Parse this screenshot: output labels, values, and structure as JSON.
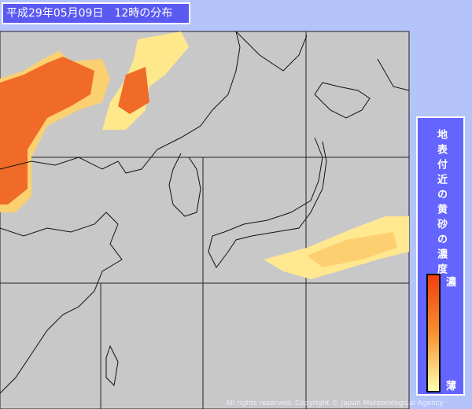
{
  "header": {
    "title": "平成29年05月09日　12時の分布"
  },
  "legend": {
    "title": "地表付近の黄砂の濃度",
    "high": "濃",
    "low": "薄"
  },
  "footer": {
    "copyright": "All rights reserved. Copyright © Japan Meteorological Agency"
  }
}
